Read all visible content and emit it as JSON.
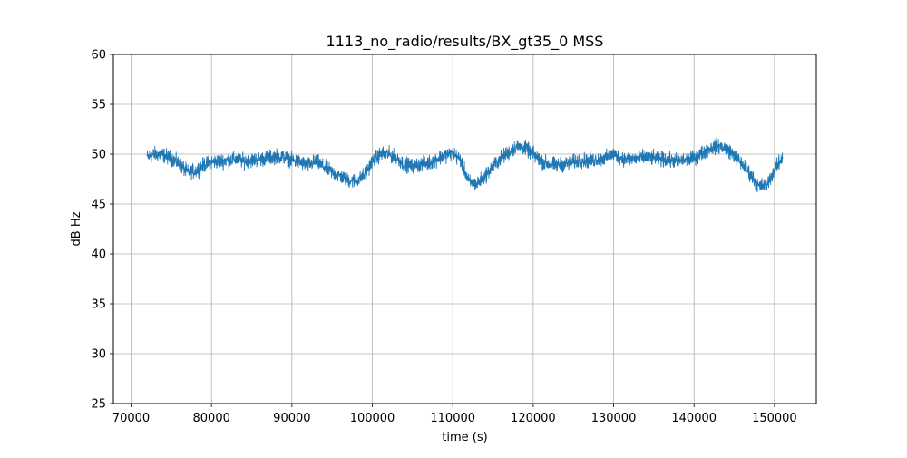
{
  "chart_data": {
    "type": "line",
    "title": "1113_no_radio/results/BX_gt35_0 MSS",
    "xlabel": "time (s)",
    "ylabel": "dB Hz",
    "xlim": [
      67800,
      155200
    ],
    "ylim": [
      25,
      60
    ],
    "xticks": [
      70000,
      80000,
      90000,
      100000,
      110000,
      120000,
      130000,
      140000,
      150000
    ],
    "xtick_labels": [
      "70000",
      "80000",
      "90000",
      "100000",
      "110000",
      "120000",
      "130000",
      "140000",
      "150000"
    ],
    "yticks": [
      25,
      30,
      35,
      40,
      45,
      50,
      55,
      60
    ],
    "ytick_labels": [
      "25",
      "30",
      "35",
      "40",
      "45",
      "50",
      "55",
      "60"
    ],
    "grid": true,
    "series": [
      {
        "color": "#1f77b4",
        "noise_amplitude": 0.55,
        "x_range": [
          72000,
          151000
        ],
        "x": [
          72000,
          73000,
          74000,
          75000,
          76000,
          77000,
          78000,
          79000,
          80000,
          81000,
          82000,
          83000,
          84000,
          85000,
          86000,
          87000,
          88000,
          89000,
          90000,
          91000,
          92000,
          93000,
          94000,
          95000,
          96000,
          97000,
          98000,
          99000,
          100000,
          101000,
          102000,
          103000,
          104000,
          105000,
          106000,
          107000,
          108000,
          109000,
          110000,
          111000,
          112000,
          113000,
          114000,
          115000,
          116000,
          117000,
          118000,
          119000,
          120000,
          121000,
          122000,
          123000,
          124000,
          125000,
          126000,
          127000,
          128000,
          129000,
          130000,
          131000,
          132000,
          133000,
          134000,
          135000,
          136000,
          137000,
          138000,
          139000,
          140000,
          141000,
          142000,
          143000,
          144000,
          145000,
          146000,
          147000,
          148000,
          149000,
          150000,
          151000
        ],
        "y": [
          49.7,
          50.0,
          49.9,
          49.6,
          49.0,
          48.2,
          48.3,
          48.9,
          49.2,
          49.3,
          49.4,
          49.5,
          49.3,
          49.4,
          49.5,
          49.6,
          49.8,
          49.7,
          49.4,
          49.2,
          48.9,
          49.3,
          48.7,
          48.2,
          47.8,
          47.4,
          47.3,
          47.9,
          49.3,
          50.0,
          50.0,
          49.6,
          49.0,
          48.8,
          49.0,
          49.1,
          49.5,
          49.9,
          50.1,
          49.4,
          47.2,
          47.0,
          47.8,
          48.8,
          49.6,
          50.2,
          50.8,
          50.6,
          50.0,
          49.3,
          49.0,
          48.9,
          49.0,
          49.2,
          49.4,
          49.3,
          49.5,
          49.6,
          50.0,
          49.6,
          49.5,
          49.6,
          49.7,
          49.6,
          49.5,
          49.4,
          49.3,
          49.4,
          49.6,
          50.1,
          50.6,
          50.8,
          50.6,
          49.9,
          49.0,
          48.0,
          46.8,
          46.9,
          48.4,
          49.7
        ]
      }
    ]
  }
}
